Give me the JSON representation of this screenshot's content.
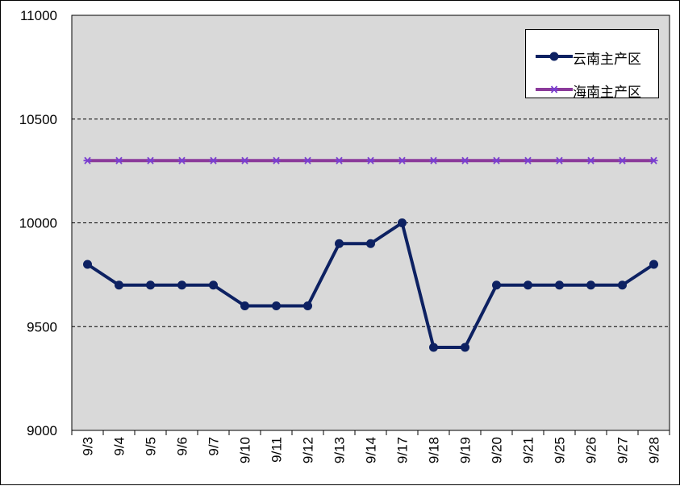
{
  "chart_data": {
    "type": "line",
    "categories": [
      "9/3",
      "9/4",
      "9/5",
      "9/6",
      "9/7",
      "9/10",
      "9/11",
      "9/12",
      "9/13",
      "9/14",
      "9/17",
      "9/18",
      "9/19",
      "9/20",
      "9/21",
      "9/25",
      "9/26",
      "9/27",
      "9/28"
    ],
    "series": [
      {
        "name": "云南主产区",
        "values": [
          9800,
          9700,
          9700,
          9700,
          9700,
          9600,
          9600,
          9600,
          9900,
          9900,
          10000,
          9400,
          9400,
          9700,
          9700,
          9700,
          9700,
          9700,
          9800
        ],
        "color": "#0d2162",
        "marker": "circle"
      },
      {
        "name": "海南主产区",
        "values": [
          10300,
          10300,
          10300,
          10300,
          10300,
          10300,
          10300,
          10300,
          10300,
          10300,
          10300,
          10300,
          10300,
          10300,
          10300,
          10300,
          10300,
          10300,
          10300
        ],
        "color": "#8b3a9a",
        "marker_color": "#7a3fd0",
        "marker": "asterisk"
      }
    ],
    "ylim": [
      9000,
      11000
    ],
    "yticks": [
      9000,
      9500,
      10000,
      10500,
      11000
    ],
    "grid": "horizontal dashed",
    "plot_background": "#d9d9d9",
    "legend_position": "top-right"
  }
}
